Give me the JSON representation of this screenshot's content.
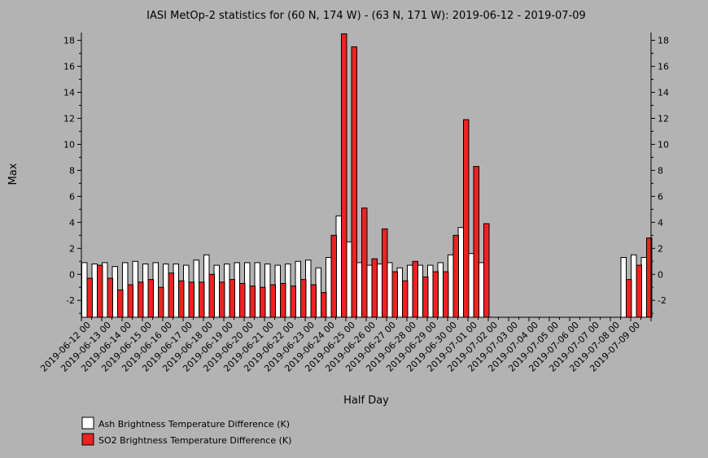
{
  "chart_data": {
    "type": "bar",
    "title": "IASI MetOp-2 statistics for (60 N, 174 W) - (63 N, 171 W): 2019-06-12 - 2019-07-09",
    "xlabel": "Half Day",
    "ylabel": "Max",
    "ylim": [
      -3.3,
      18.6
    ],
    "yticks": [
      -2,
      0,
      2,
      4,
      6,
      8,
      10,
      12,
      14,
      16,
      18
    ],
    "categories": [
      "2019-06-12 00",
      "2019-06-12 12",
      "2019-06-13 00",
      "2019-06-13 12",
      "2019-06-14 00",
      "2019-06-14 12",
      "2019-06-15 00",
      "2019-06-15 12",
      "2019-06-16 00",
      "2019-06-16 12",
      "2019-06-17 00",
      "2019-06-17 12",
      "2019-06-18 00",
      "2019-06-18 12",
      "2019-06-19 00",
      "2019-06-19 12",
      "2019-06-20 00",
      "2019-06-20 12",
      "2019-06-21 00",
      "2019-06-21 12",
      "2019-06-22 00",
      "2019-06-22 12",
      "2019-06-23 00",
      "2019-06-23 12",
      "2019-06-24 00",
      "2019-06-24 12",
      "2019-06-25 00",
      "2019-06-25 12",
      "2019-06-26 00",
      "2019-06-26 12",
      "2019-06-27 00",
      "2019-06-27 12",
      "2019-06-28 00",
      "2019-06-28 12",
      "2019-06-29 00",
      "2019-06-29 12",
      "2019-06-30 00",
      "2019-06-30 12",
      "2019-07-01 00",
      "2019-07-01 12",
      "2019-07-02 00",
      "2019-07-02 12",
      "2019-07-03 00",
      "2019-07-03 12",
      "2019-07-04 00",
      "2019-07-04 12",
      "2019-07-05 00",
      "2019-07-05 12",
      "2019-07-06 00",
      "2019-07-06 12",
      "2019-07-07 00",
      "2019-07-07 12",
      "2019-07-08 00",
      "2019-07-08 12",
      "2019-07-09 00",
      "2019-07-09 12"
    ],
    "tick_labels": [
      "2019-06-12 00",
      "2019-06-13 00",
      "2019-06-14 00",
      "2019-06-15 00",
      "2019-06-16 00",
      "2019-06-17 00",
      "2019-06-18 00",
      "2019-06-19 00",
      "2019-06-20 00",
      "2019-06-21 00",
      "2019-06-22 00",
      "2019-06-23 00",
      "2019-06-24 00",
      "2019-06-25 00",
      "2019-06-26 00",
      "2019-06-27 00",
      "2019-06-28 00",
      "2019-06-29 00",
      "2019-06-30 00",
      "2019-07-01 00",
      "2019-07-02 00",
      "2019-07-03 00",
      "2019-07-04 00",
      "2019-07-05 00",
      "2019-07-06 00",
      "2019-07-07 00",
      "2019-07-08 00",
      "2019-07-09 00"
    ],
    "series": [
      {
        "name": "Ash Brightness Temperature Difference (K)",
        "color": "#ffffff",
        "values": [
          0.9,
          0.8,
          0.9,
          0.6,
          0.9,
          1.0,
          0.8,
          0.9,
          0.8,
          0.8,
          0.7,
          1.1,
          1.5,
          0.7,
          0.8,
          0.9,
          0.9,
          0.9,
          0.8,
          0.7,
          0.8,
          1.0,
          1.1,
          0.5,
          1.3,
          4.5,
          2.5,
          0.9,
          0.7,
          0.8,
          0.9,
          0.5,
          0.7,
          0.7,
          0.7,
          0.9,
          1.5,
          3.6,
          1.6,
          0.9,
          null,
          null,
          null,
          null,
          null,
          null,
          null,
          null,
          null,
          null,
          null,
          null,
          null,
          1.3,
          1.5,
          1.3
        ]
      },
      {
        "name": "SO2 Brightness Temperature Difference (K)",
        "color": "#ee2222",
        "values": [
          -0.3,
          0.7,
          -0.3,
          -1.2,
          -0.8,
          -0.6,
          -0.4,
          -1.0,
          0.1,
          -0.5,
          -0.6,
          -0.6,
          0.0,
          -0.6,
          -0.4,
          -0.7,
          -0.9,
          -1.0,
          -0.8,
          -0.7,
          -0.9,
          -0.4,
          -0.8,
          -1.4,
          3.0,
          18.5,
          17.5,
          5.1,
          1.2,
          3.5,
          0.2,
          -0.5,
          1.0,
          -0.2,
          0.2,
          0.2,
          3.0,
          11.9,
          8.3,
          3.9,
          null,
          null,
          null,
          null,
          null,
          null,
          null,
          null,
          null,
          null,
          null,
          null,
          null,
          -0.4,
          0.7,
          2.8
        ]
      }
    ],
    "legend_position": "bottom-left",
    "grid": false
  }
}
